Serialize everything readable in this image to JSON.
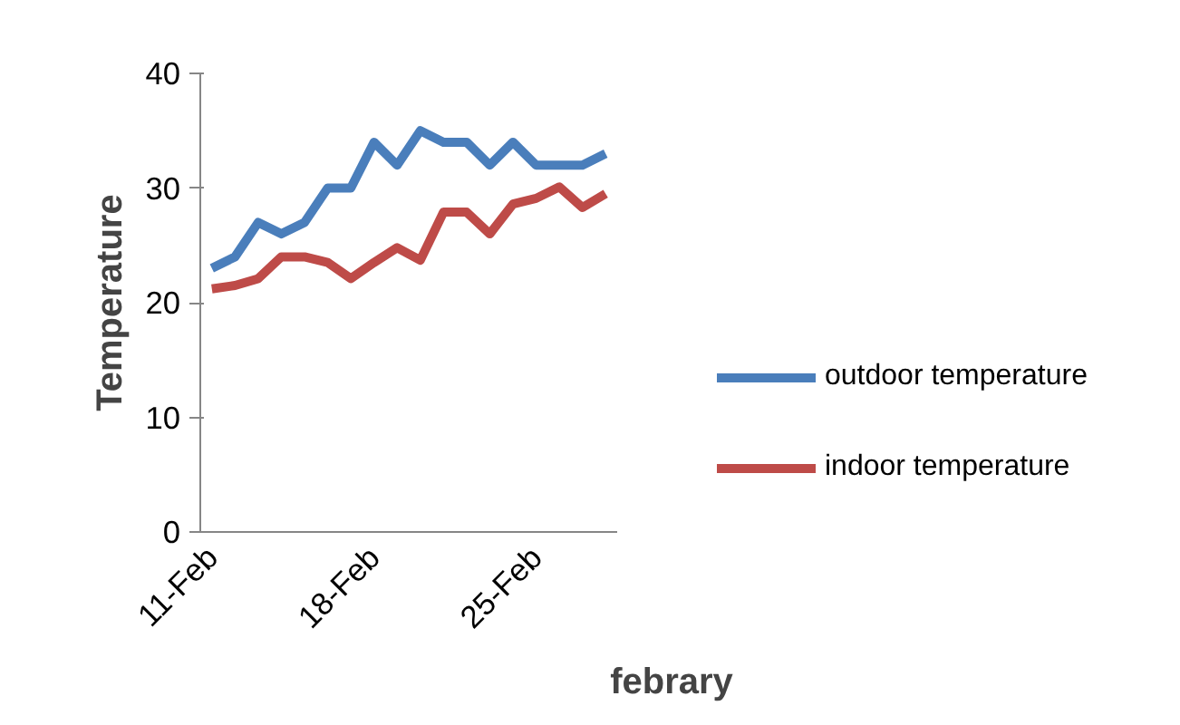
{
  "chart_data": {
    "type": "line",
    "xlabel": "febrary",
    "ylabel": "Temperature",
    "categories": [
      "11-Feb",
      null,
      null,
      null,
      null,
      null,
      null,
      "18-Feb",
      null,
      null,
      null,
      null,
      null,
      null,
      "25-Feb",
      null,
      null,
      null
    ],
    "series": [
      {
        "name": "outdoor temperature",
        "color": "#4a7ebb",
        "values": [
          23,
          24,
          27,
          26,
          27,
          30,
          30,
          34,
          32,
          35,
          34,
          34,
          32,
          34,
          32,
          32,
          32,
          33
        ]
      },
      {
        "name": "indoor temperature",
        "color": "#be4b48",
        "values": [
          21.2,
          21.5,
          22.1,
          24,
          24,
          23.5,
          22.1,
          23.5,
          24.8,
          23.7,
          27.9,
          27.9,
          26,
          28.6,
          29.1,
          30.1,
          28.3,
          29.5
        ]
      }
    ],
    "ylim": [
      0,
      40
    ],
    "yticks": [
      0,
      10,
      20,
      30,
      40
    ],
    "grid": false,
    "legend": "right",
    "marker": "none",
    "line_style": "solid"
  }
}
